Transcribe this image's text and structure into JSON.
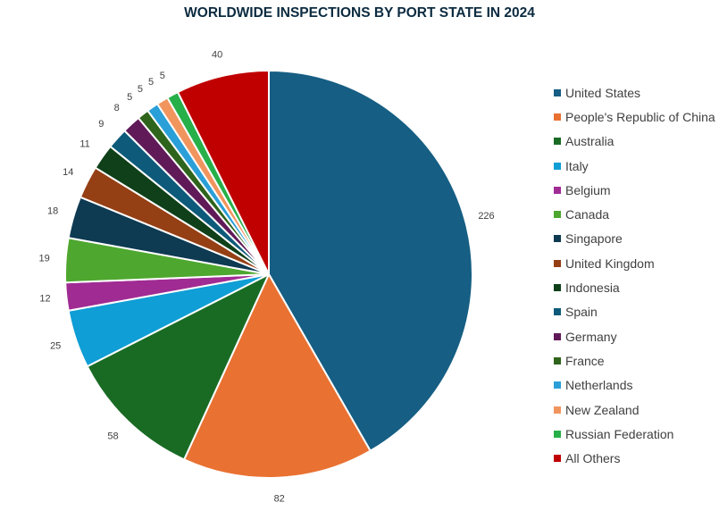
{
  "chart_data": {
    "type": "pie",
    "title": "WORLDWIDE INSPECTIONS BY PORT STATE IN 2024",
    "legend_position": "right",
    "slices": [
      {
        "label": "United States",
        "value": 226,
        "color": "#165e83"
      },
      {
        "label": "People's Republic of China",
        "value": 82,
        "color": "#e97132"
      },
      {
        "label": "Australia",
        "value": 58,
        "color": "#196b24"
      },
      {
        "label": "Italy",
        "value": 25,
        "color": "#0f9ed5"
      },
      {
        "label": "Belgium",
        "value": 12,
        "color": "#a02b93"
      },
      {
        "label": "Canada",
        "value": 19,
        "color": "#4ea72e"
      },
      {
        "label": "Singapore",
        "value": 18,
        "color": "#0e3a52"
      },
      {
        "label": "United Kingdom",
        "value": 14,
        "color": "#953f14"
      },
      {
        "label": "Indonesia",
        "value": 11,
        "color": "#0f4019"
      },
      {
        "label": "Spain",
        "value": 9,
        "color": "#0d5a7a"
      },
      {
        "label": "Germany",
        "value": 8,
        "color": "#601a58"
      },
      {
        "label": "France",
        "value": 5,
        "color": "#2e641b"
      },
      {
        "label": "Netherlands",
        "value": 5,
        "color": "#2b9fd8"
      },
      {
        "label": "New Zealand",
        "value": 5,
        "color": "#f1955e"
      },
      {
        "label": "Russian Federation",
        "value": 5,
        "color": "#27b04a"
      },
      {
        "label": "All Others",
        "value": 40,
        "color": "#c00000"
      }
    ]
  }
}
